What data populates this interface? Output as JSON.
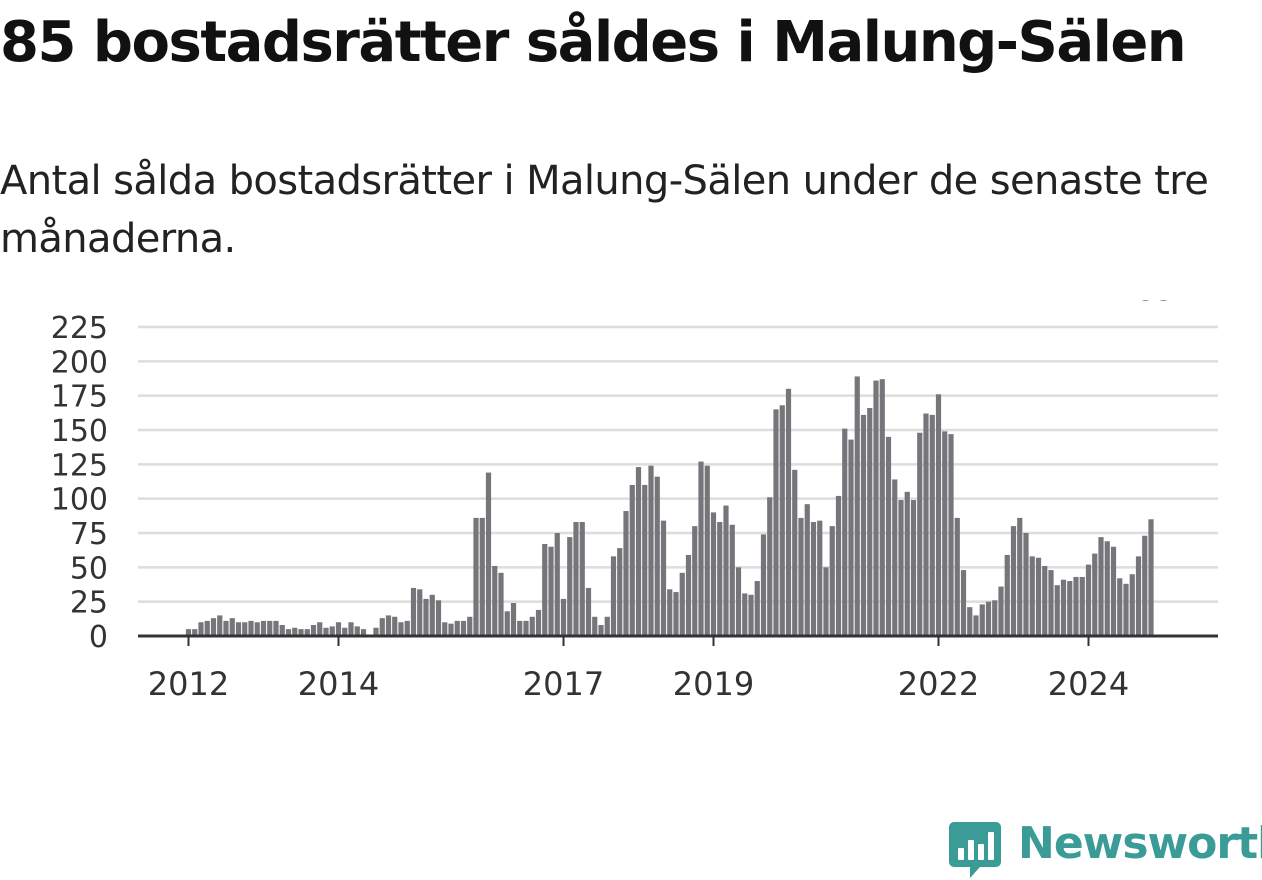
{
  "title": "85 bostadsrätter såldes i Malung-Sälen",
  "subtitle": "Antal sålda bostadsrätter i Malung-Sälen under de senaste tre månaderna.",
  "brand": {
    "name": "Newsworthy",
    "color": "#3a9b97",
    "icon": "newsworthy-logo-icon"
  },
  "colors": {
    "bar": "#76757a",
    "highlight": "#27a39a",
    "grid": "#dddddd",
    "axis": "#333333"
  },
  "chart_data": {
    "type": "bar",
    "title": "",
    "xlabel": "",
    "ylabel": "",
    "ylim": [
      0,
      225
    ],
    "yticks": [
      0,
      25,
      50,
      75,
      100,
      125,
      150,
      175,
      200,
      225
    ],
    "grid": true,
    "start": "2011-06",
    "xtick_labels": [
      {
        "label": "2012",
        "index": 7
      },
      {
        "label": "2014",
        "index": 31
      },
      {
        "label": "2017",
        "index": 67
      },
      {
        "label": "2019",
        "index": 91
      },
      {
        "label": "2022",
        "index": 127
      },
      {
        "label": "2024",
        "index": 151
      }
    ],
    "values": [
      0,
      0,
      0,
      0,
      0,
      0,
      0,
      5,
      5,
      10,
      11,
      13,
      15,
      11,
      13,
      10,
      10,
      11,
      10,
      11,
      11,
      11,
      8,
      5,
      6,
      5,
      5,
      8,
      10,
      6,
      7,
      10,
      6,
      10,
      7,
      5,
      0,
      6,
      13,
      15,
      14,
      10,
      11,
      35,
      34,
      27,
      30,
      26,
      10,
      9,
      11,
      11,
      14,
      86,
      86,
      119,
      51,
      46,
      18,
      24,
      11,
      11,
      14,
      19,
      67,
      65,
      75,
      27,
      72,
      83,
      83,
      35,
      14,
      8,
      14,
      58,
      64,
      91,
      110,
      123,
      110,
      124,
      116,
      84,
      34,
      32,
      46,
      59,
      80,
      127,
      124,
      90,
      83,
      95,
      81,
      50,
      31,
      30,
      40,
      74,
      101,
      165,
      168,
      180,
      121,
      86,
      96,
      83,
      84,
      50,
      80,
      102,
      151,
      143,
      189,
      161,
      166,
      186,
      187,
      145,
      114,
      99,
      105,
      99,
      148,
      162,
      161,
      176,
      149,
      147,
      86,
      48,
      21,
      15,
      23,
      25,
      26,
      36,
      59,
      80,
      86,
      75,
      58,
      57,
      51,
      48,
      37,
      41,
      40,
      43,
      43,
      52,
      60,
      72,
      69,
      65,
      42,
      38,
      45,
      58,
      73,
      85
    ],
    "highlight_index": 162,
    "highlight_label": "85"
  }
}
